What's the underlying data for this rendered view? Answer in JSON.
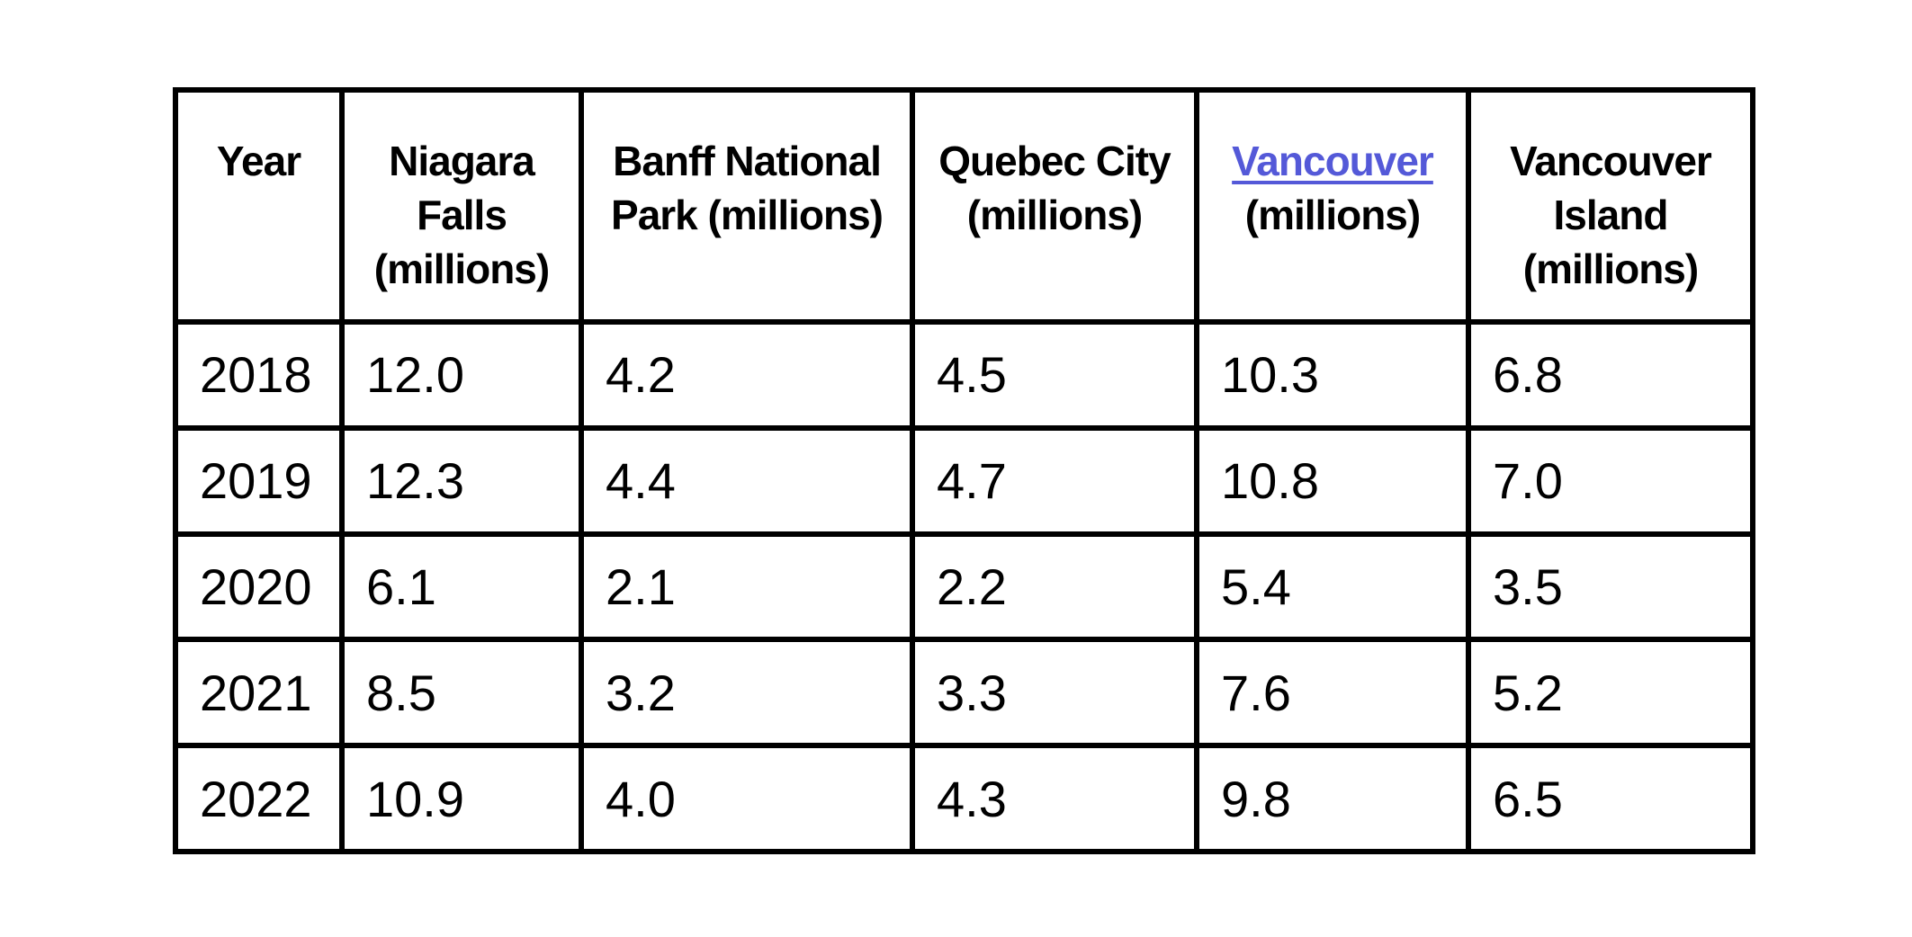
{
  "table": {
    "headers": [
      {
        "lines": [
          "Year"
        ]
      },
      {
        "lines": [
          "Niagara",
          "Falls",
          "(millions)"
        ]
      },
      {
        "lines": [
          "Banff National",
          "Park (millions)"
        ]
      },
      {
        "lines": [
          "Quebec City",
          "(millions)"
        ]
      },
      {
        "lines": [
          "Vancouver",
          "(millions)"
        ],
        "link": "Vancouver"
      },
      {
        "lines": [
          "Vancouver",
          "Island",
          "(millions)"
        ]
      }
    ],
    "link_color": "#5459d8",
    "rows": [
      [
        "2018",
        "12.0",
        "4.2",
        "4.5",
        "10.3",
        "6.8"
      ],
      [
        "2019",
        "12.3",
        "4.4",
        "4.7",
        "10.8",
        "7.0"
      ],
      [
        "2020",
        "6.1",
        "2.1",
        "2.2",
        "5.4",
        "3.5"
      ],
      [
        "2021",
        "8.5",
        "3.2",
        "3.3",
        "7.6",
        "5.2"
      ],
      [
        "2022",
        "10.9",
        "4.0",
        "4.3",
        "9.8",
        "6.5"
      ]
    ]
  }
}
